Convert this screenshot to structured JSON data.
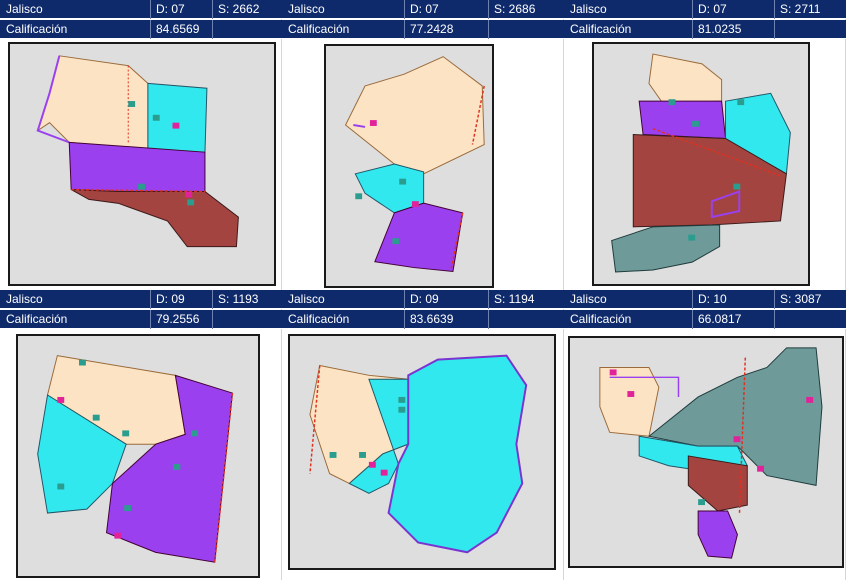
{
  "colors": {
    "header_bg": "#0f2a6b",
    "header_text": "#ffffff",
    "map_bg": "#dedede",
    "peach": "#fbe3c4",
    "cyan": "#31e8ee",
    "purple": "#9a40ee",
    "brown": "#a34440",
    "slate": "#6e9a9a",
    "line": "#6f4d24",
    "marker_magenta": "#e2229b",
    "marker_teal": "#2a9d8f",
    "dashed_red": "#e0311f"
  },
  "score_label": "Calificación",
  "panels": [
    {
      "state": "Jalisco",
      "district": "D: 07",
      "section": "S: 2662",
      "score": "84.6569"
    },
    {
      "state": "Jalisco",
      "district": "D: 07",
      "section": "S: 2686",
      "score": "77.2428"
    },
    {
      "state": "Jalisco",
      "district": "D: 07",
      "section": "S: 2711",
      "score": "81.0235"
    },
    {
      "state": "Jalisco",
      "district": "D: 09",
      "section": "S: 1193",
      "score": "79.2556"
    },
    {
      "state": "Jalisco",
      "district": "D: 09",
      "section": "S: 1194",
      "score": "83.6639"
    },
    {
      "state": "Jalisco",
      "district": "D: 10",
      "section": "S: 3087",
      "score": "66.0817"
    }
  ],
  "icons": {
    "marker": "house-marker-icon"
  }
}
